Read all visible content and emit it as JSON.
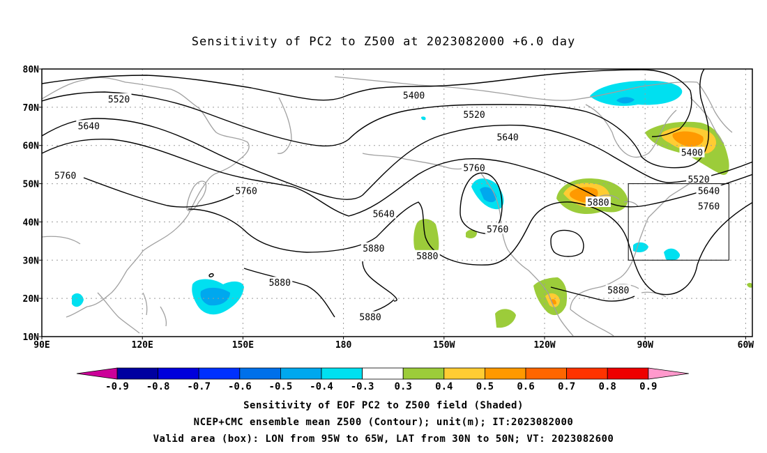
{
  "title": "Sensitivity of PC2 to Z500 at 2023082000 +6.0 day",
  "map": {
    "lon_range": [
      90,
      302
    ],
    "lat_range": [
      10,
      80
    ],
    "lat_ticks": [
      {
        "lat": 80,
        "label": "80N"
      },
      {
        "lat": 70,
        "label": "70N"
      },
      {
        "lat": 60,
        "label": "60N"
      },
      {
        "lat": 50,
        "label": "50N"
      },
      {
        "lat": 40,
        "label": "40N"
      },
      {
        "lat": 30,
        "label": "30N"
      },
      {
        "lat": 20,
        "label": "20N"
      },
      {
        "lat": 10,
        "label": "10N"
      }
    ],
    "lon_ticks": [
      {
        "lon": 90,
        "label": "90E"
      },
      {
        "lon": 120,
        "label": "120E"
      },
      {
        "lon": 150,
        "label": "150E"
      },
      {
        "lon": 180,
        "label": "180"
      },
      {
        "lon": 210,
        "label": "150W"
      },
      {
        "lon": 240,
        "label": "120W"
      },
      {
        "lon": 270,
        "label": "90W"
      },
      {
        "lon": 300,
        "label": "60W"
      }
    ],
    "valid_box": {
      "lon_from": 265,
      "lon_to": 295,
      "lat_from": 30,
      "lat_to": 50
    }
  },
  "contour_labels": [
    {
      "text": "5520",
      "lon": 113,
      "lat": 72
    },
    {
      "text": "5400",
      "lon": 201,
      "lat": 73
    },
    {
      "text": "5520",
      "lon": 219,
      "lat": 68
    },
    {
      "text": "5640",
      "lon": 104,
      "lat": 65
    },
    {
      "text": "5640",
      "lon": 229,
      "lat": 62
    },
    {
      "text": "5400",
      "lon": 284,
      "lat": 58
    },
    {
      "text": "5520",
      "lon": 286,
      "lat": 51
    },
    {
      "text": "5760",
      "lon": 97,
      "lat": 52
    },
    {
      "text": "5760",
      "lon": 219,
      "lat": 54
    },
    {
      "text": "5760",
      "lon": 151,
      "lat": 48
    },
    {
      "text": "5640",
      "lon": 192,
      "lat": 42
    },
    {
      "text": "5640",
      "lon": 289,
      "lat": 48
    },
    {
      "text": "5880",
      "lon": 256,
      "lat": 45
    },
    {
      "text": "5760",
      "lon": 289,
      "lat": 44
    },
    {
      "text": "5760",
      "lon": 226,
      "lat": 38
    },
    {
      "text": "5880",
      "lon": 189,
      "lat": 33
    },
    {
      "text": "5880",
      "lon": 205,
      "lat": 31
    },
    {
      "text": "5880",
      "lon": 161,
      "lat": 24
    },
    {
      "text": "5880",
      "lon": 262,
      "lat": 22
    },
    {
      "text": "5880",
      "lon": 188,
      "lat": 15
    }
  ],
  "colorbar": {
    "labels": [
      "-0.9",
      "-0.8",
      "-0.7",
      "-0.6",
      "-0.5",
      "-0.4",
      "-0.3",
      "0.3",
      "0.4",
      "0.5",
      "0.6",
      "0.7",
      "0.8",
      "0.9"
    ],
    "colors": [
      "#0000a0",
      "#0000dc",
      "#0030ff",
      "#0070ea",
      "#00a8ee",
      "#00e0f0",
      "#ffffff",
      "#9ccc3a",
      "#ffcc33",
      "#ff9900",
      "#ff6600",
      "#ff3300",
      "#ee0000"
    ],
    "low_arrow_color": "#cc0099",
    "high_arrow_color": "#ff99cc"
  },
  "captions": [
    "Sensitivity of EOF PC2 to Z500 field (Shaded)",
    "NCEP+CMC ensemble mean Z500 (Contour); unit(m); IT:2023082000",
    "Valid area (box): LON from 95W to 65W, LAT from 30N to 50N; VT: 2023082600"
  ],
  "colors": {
    "coastline": "#a0a0a0",
    "gridline": "#9a9a9a",
    "contour": "#000000"
  }
}
